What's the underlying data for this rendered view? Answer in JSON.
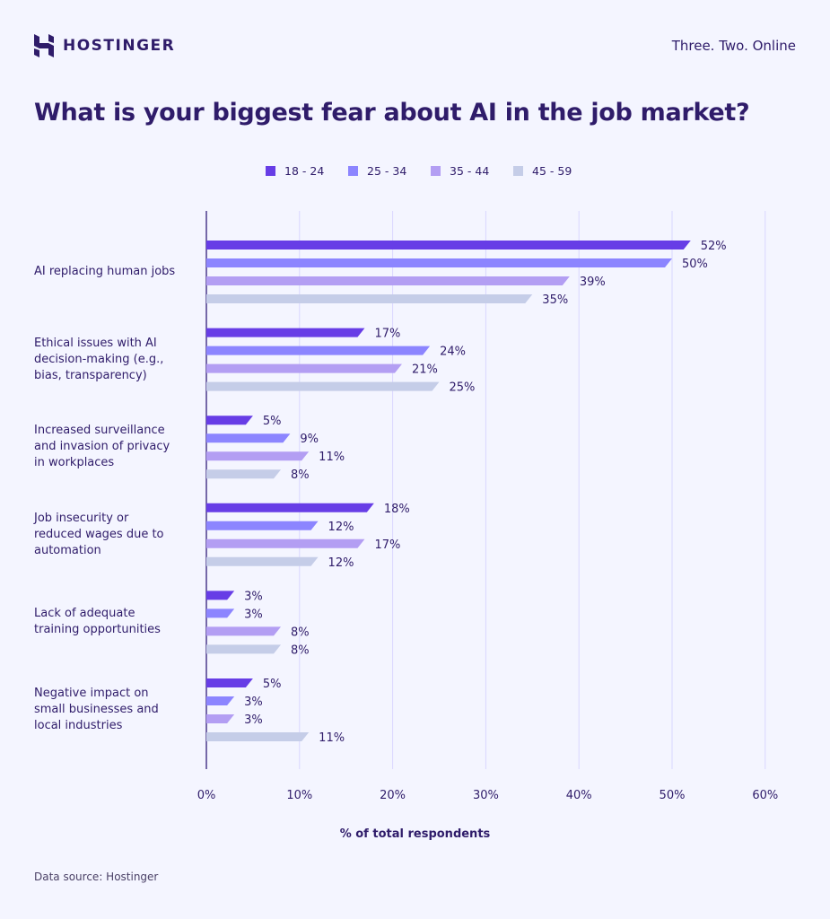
{
  "brand": {
    "name": "HOSTINGER",
    "tagline": "Three. Two. Online"
  },
  "title": "What is your biggest fear about AI in the job market?",
  "source": "Data source: Hostinger",
  "colors": {
    "18 - 24": "#673de6",
    "25 - 34": "#8c85ff",
    "35 - 44": "#b39ef3",
    "45 - 59": "#c5cde8",
    "text": "#2f1c6a",
    "grid": "#d9d6ff"
  },
  "chart_data": {
    "type": "bar",
    "orientation": "horizontal",
    "title": "What is your biggest fear about AI in the job market?",
    "xlabel": "% of total respondents",
    "ylabel": "",
    "xlim": [
      0,
      60
    ],
    "xticks": [
      "0%",
      "10%",
      "20%",
      "30%",
      "40%",
      "50%",
      "60%"
    ],
    "grid": true,
    "legend_position": "top",
    "categories": [
      [
        "AI replacing human jobs"
      ],
      [
        "Ethical issues with AI",
        "decision-making (e.g.,",
        "bias, transparency)"
      ],
      [
        "Increased surveillance",
        "and invasion of privacy",
        "in workplaces"
      ],
      [
        "Job insecurity or",
        "reduced wages due to",
        "automation"
      ],
      [
        "Lack of adequate",
        "training opportunities"
      ],
      [
        "Negative impact on",
        "small businesses and",
        "local industries"
      ]
    ],
    "series": [
      {
        "name": "18 - 24",
        "values": [
          52,
          17,
          5,
          18,
          3,
          5
        ]
      },
      {
        "name": "25 - 34",
        "values": [
          50,
          24,
          9,
          12,
          3,
          3
        ]
      },
      {
        "name": "35 - 44",
        "values": [
          39,
          21,
          11,
          17,
          8,
          3
        ]
      },
      {
        "name": "45 - 59",
        "values": [
          35,
          25,
          8,
          12,
          8,
          11
        ]
      }
    ]
  }
}
